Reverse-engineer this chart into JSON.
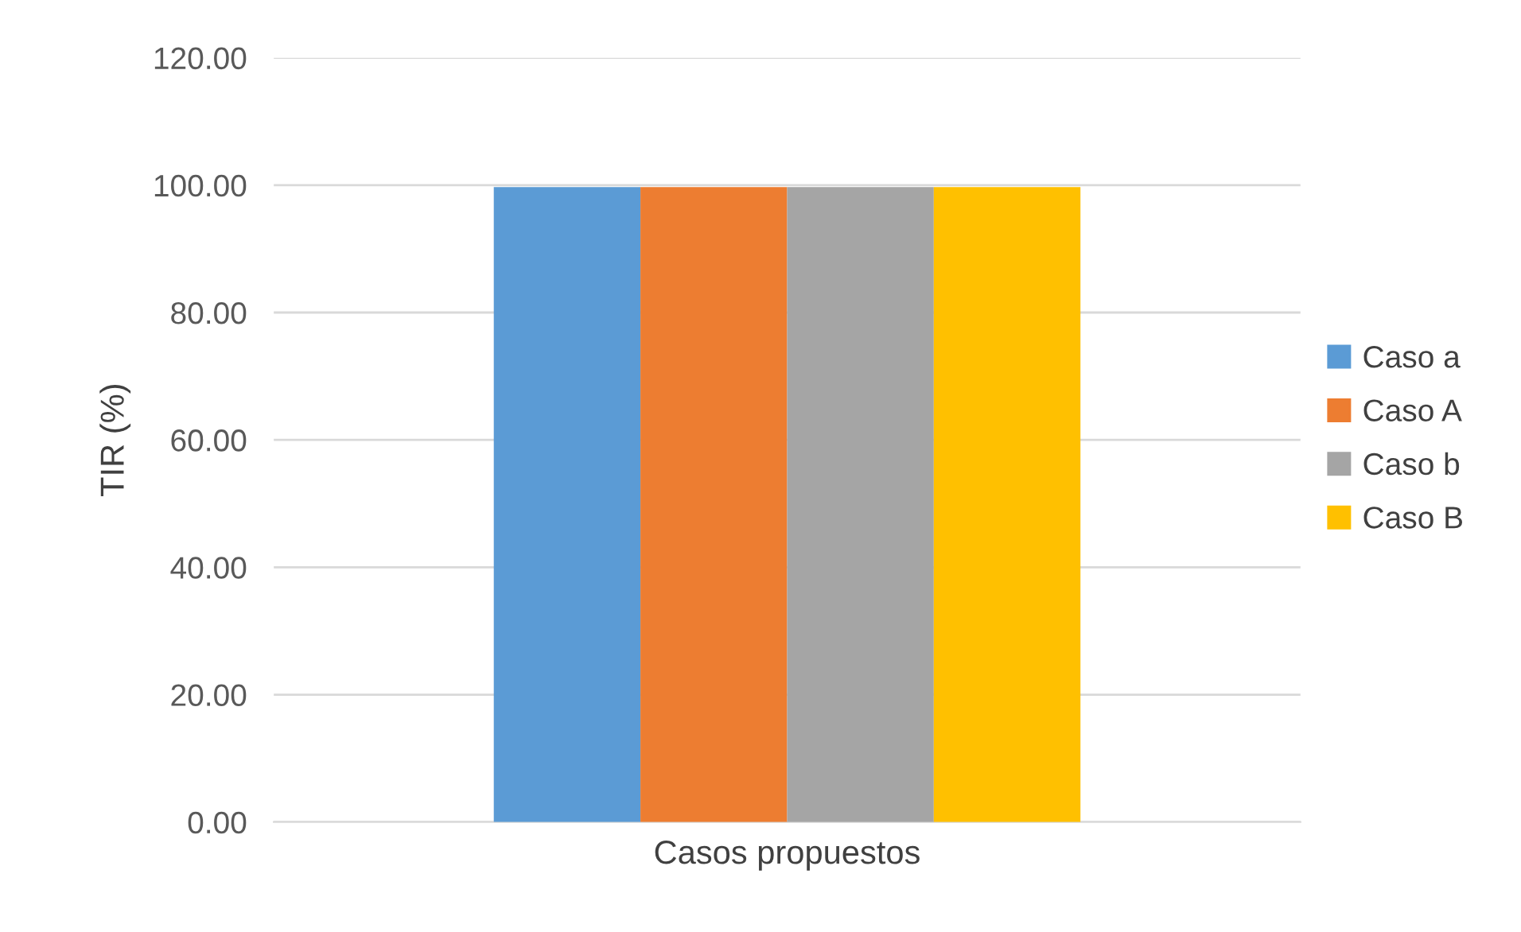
{
  "chart_data": {
    "type": "bar",
    "ylabel": "TIR (%)",
    "categories": [
      "Casos propuestos"
    ],
    "series": [
      {
        "name": "Caso a",
        "color": "#5b9bd5",
        "values": [
          99.7
        ]
      },
      {
        "name": "Caso A",
        "color": "#ed7d31",
        "values": [
          99.7
        ]
      },
      {
        "name": "Caso b",
        "color": "#a5a5a5",
        "values": [
          99.7
        ]
      },
      {
        "name": "Caso B",
        "color": "#ffc000",
        "values": [
          99.7
        ]
      }
    ],
    "ylim": [
      0,
      120
    ],
    "yticks": [
      {
        "value": 0,
        "label": "0.00"
      },
      {
        "value": 20,
        "label": "20.00"
      },
      {
        "value": 40,
        "label": "40.00"
      },
      {
        "value": 60,
        "label": "60.00"
      },
      {
        "value": 80,
        "label": "80.00"
      },
      {
        "value": 100,
        "label": "100.00"
      },
      {
        "value": 120,
        "label": "120.00"
      }
    ],
    "grid": "y",
    "legend": "right"
  }
}
